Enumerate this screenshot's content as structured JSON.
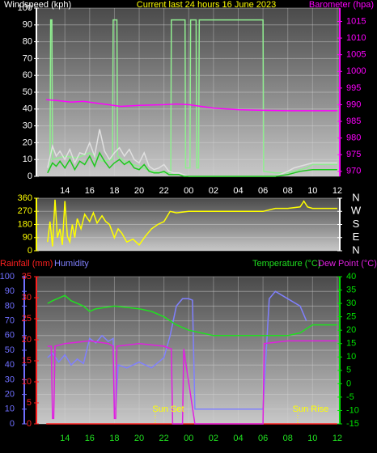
{
  "chart_data": [
    {
      "type": "line",
      "title": "Current last 24 hours 16 June 2023",
      "y_label": "Windspeed (kph)",
      "xlim": [
        11.7,
        36.2
      ],
      "xticks": [
        14,
        16,
        18,
        20,
        22,
        {
          "value": 24,
          "label": "00"
        },
        {
          "value": 26,
          "label": "02"
        },
        {
          "value": 28,
          "label": "04"
        },
        {
          "value": 30,
          "label": "06"
        },
        {
          "value": 32,
          "label": "08"
        },
        {
          "value": 34,
          "label": "10"
        },
        {
          "value": 36,
          "label": "12"
        }
      ],
      "ylim": [
        0,
        100
      ],
      "yticks": [
        0,
        10,
        20,
        30,
        40,
        50,
        60,
        70,
        80,
        90,
        100
      ],
      "y_color": "#ffffff",
      "y2lim": [
        968.5,
        1019
      ],
      "y2ticks": [
        970,
        975,
        980,
        985,
        990,
        995,
        1000,
        1005,
        1010,
        1015
      ],
      "y2_color": "#ff00ff",
      "grid": true,
      "series": [
        {
          "color": "#90ee90",
          "x": [
            12.6,
            12.8,
            12.85,
            12.95,
            13,
            14,
            15,
            16,
            17,
            17.85,
            17.9,
            18.2,
            18.25,
            19,
            20,
            21,
            22,
            22.55,
            22.6,
            23.7,
            23.75,
            24.1,
            24.15,
            24.6,
            24.65,
            24.8,
            24.85,
            30,
            30.05,
            31,
            32,
            33,
            33.5,
            34,
            35,
            36
          ],
          "values": [
            3,
            4,
            93,
            93,
            10,
            12,
            11,
            14,
            9,
            10,
            93,
            93,
            12,
            8,
            6,
            3,
            2,
            2,
            93,
            93,
            5,
            5,
            93,
            93,
            5,
            5,
            93,
            93,
            3,
            2,
            2,
            4,
            5,
            7,
            7,
            7
          ]
        },
        {
          "color": "#e0e0e0",
          "x": [
            12.6,
            13,
            13.3,
            13.6,
            14,
            14.4,
            14.8,
            15.2,
            15.6,
            16,
            16.4,
            16.8,
            17.2,
            17.6,
            18,
            18.4,
            18.8,
            19.2,
            19.6,
            20,
            20.4,
            20.8,
            21.2,
            21.6,
            22,
            22.4,
            22.8,
            23.2,
            23.6,
            24,
            26,
            28,
            30,
            31,
            32,
            32.5,
            33,
            34,
            35,
            36
          ],
          "values": [
            5,
            18,
            12,
            15,
            10,
            16,
            8,
            14,
            13,
            20,
            12,
            28,
            15,
            10,
            14,
            17,
            12,
            16,
            10,
            8,
            14,
            6,
            4,
            5,
            7,
            3,
            2,
            2,
            1,
            0,
            0,
            0,
            0,
            0,
            3,
            5,
            6,
            8,
            8,
            8
          ]
        },
        {
          "color": "#1ec81e",
          "x": [
            12.6,
            13,
            13.3,
            13.6,
            14,
            14.4,
            14.8,
            15.2,
            15.6,
            16,
            16.4,
            16.8,
            17.2,
            17.6,
            18,
            18.4,
            18.8,
            19.2,
            19.6,
            20,
            20.4,
            20.8,
            21.2,
            21.6,
            22,
            22.4,
            22.8,
            23.2,
            23.6,
            24,
            26,
            28,
            30,
            31,
            32,
            32.5,
            33,
            34,
            35,
            36
          ],
          "values": [
            2,
            8,
            6,
            9,
            5,
            10,
            4,
            9,
            7,
            12,
            6,
            14,
            9,
            5,
            8,
            10,
            7,
            9,
            5,
            4,
            7,
            3,
            2,
            2,
            3,
            1,
            1,
            1,
            0,
            0,
            0,
            0,
            0,
            0,
            1,
            2,
            3,
            4,
            4,
            4
          ]
        },
        {
          "name": "Barometer (hpa)",
          "color": "#ff00ff",
          "axis": "y2",
          "x": [
            12.5,
            13.5,
            14.5,
            15.5,
            16.5,
            17.5,
            18.5,
            20,
            22,
            23,
            24,
            25,
            26,
            28,
            30,
            32,
            34,
            36
          ],
          "values": [
            991.5,
            991.2,
            990.8,
            991,
            990.5,
            990,
            989.5,
            989.8,
            990,
            990.2,
            990,
            989.5,
            989,
            988.5,
            988.3,
            988.2,
            988.2,
            988.2
          ]
        }
      ]
    },
    {
      "type": "line",
      "xlim": [
        11.7,
        36.2
      ],
      "ylim": [
        0,
        360
      ],
      "yticks": [
        0,
        90,
        180,
        270,
        360
      ],
      "y_color": "#ffff00",
      "y2lim": [
        0,
        360
      ],
      "y2ticks": [
        {
          "value": 0,
          "label": "N"
        },
        {
          "value": 90,
          "label": "E"
        },
        {
          "value": 180,
          "label": "S"
        },
        {
          "value": 270,
          "label": "W"
        },
        {
          "value": 360,
          "label": "N"
        }
      ],
      "y2_color": "#ffffff",
      "grid": true,
      "series": [
        {
          "color": "#ffff00",
          "x": [
            12.6,
            12.8,
            13,
            13.2,
            13.4,
            13.6,
            13.8,
            14,
            14.2,
            14.4,
            14.6,
            14.8,
            15,
            15.3,
            15.6,
            16,
            16.3,
            16.6,
            17,
            17.3,
            17.6,
            18,
            18.3,
            18.6,
            19,
            19.5,
            20,
            20.5,
            21,
            21.5,
            22,
            22.5,
            23,
            24,
            26,
            28,
            30,
            31,
            32,
            33,
            33.3,
            33.6,
            34,
            36
          ],
          "values": [
            60,
            200,
            30,
            350,
            90,
            150,
            40,
            340,
            100,
            60,
            180,
            90,
            220,
            150,
            250,
            200,
            260,
            190,
            240,
            200,
            180,
            90,
            150,
            120,
            60,
            80,
            40,
            100,
            150,
            180,
            200,
            270,
            260,
            270,
            270,
            270,
            270,
            290,
            290,
            300,
            340,
            300,
            290,
            290
          ]
        }
      ]
    },
    {
      "type": "line",
      "xlim": [
        11.7,
        36.2
      ],
      "xticks": [
        14,
        16,
        18,
        20,
        22,
        {
          "value": 24,
          "label": "00"
        },
        {
          "value": 26,
          "label": "02"
        },
        {
          "value": 28,
          "label": "04"
        },
        {
          "value": 30,
          "label": "06"
        },
        {
          "value": 32,
          "label": "08"
        },
        {
          "value": 34,
          "label": "10"
        },
        {
          "value": 36,
          "label": "12"
        }
      ],
      "ylim": [
        0,
        100
      ],
      "yticks": [
        0,
        10,
        20,
        30,
        40,
        50,
        60,
        70,
        80,
        90,
        100
      ],
      "y_color": "#6f6fff",
      "y2lim": [
        -15,
        40
      ],
      "y2ticks": [
        -15,
        -10,
        -5,
        0,
        5,
        10,
        15,
        20,
        25,
        30,
        35,
        40
      ],
      "y2_color": "#00e000",
      "y3lim": [
        0,
        35
      ],
      "y3ticks": [
        0,
        5,
        10,
        15,
        20,
        25,
        30,
        35
      ],
      "y3_color": "#ff2020",
      "grid": true,
      "series": [
        {
          "name": "Rainfall (mm)",
          "color": "#ff2020",
          "axis": "y3",
          "x": [
            12.5,
            36
          ],
          "values": [
            0,
            0
          ]
        },
        {
          "name": "Humidity",
          "color": "#8080ff",
          "x": [
            12.6,
            13,
            13.5,
            14,
            14.5,
            15,
            15.5,
            16,
            16.5,
            17,
            17.5,
            17.9,
            18,
            18.1,
            18.3,
            19,
            20,
            21,
            22,
            22.5,
            23,
            23.5,
            24,
            24.3,
            24.5,
            26,
            28,
            30,
            30.5,
            31,
            32,
            33,
            33.5
          ],
          "values": [
            45,
            48,
            42,
            47,
            40,
            44,
            41,
            58,
            55,
            60,
            56,
            58,
            10,
            10,
            40,
            38,
            42,
            38,
            45,
            60,
            80,
            85,
            85,
            84,
            10,
            10,
            10,
            10,
            85,
            90,
            85,
            80,
            70
          ]
        },
        {
          "name": "Temperature (°C)",
          "color": "#20e020",
          "axis": "y2",
          "x": [
            12.6,
            13,
            14,
            14.5,
            15,
            15.5,
            16,
            16.5,
            18,
            20,
            21,
            22,
            23,
            24,
            26,
            28,
            30,
            32,
            33,
            34,
            36
          ],
          "values": [
            30,
            31,
            33,
            31,
            30,
            29,
            27,
            28,
            29,
            28,
            27,
            25,
            22,
            20,
            18,
            18,
            18,
            18,
            19,
            22,
            22
          ]
        },
        {
          "name": "Dew Point (°C)",
          "color": "#e020e0",
          "axis": "y2",
          "x": [
            12.6,
            12.9,
            13,
            13.1,
            13.2,
            14,
            16,
            17.5,
            17.9,
            18,
            18.1,
            18.2,
            20,
            22,
            22.6,
            22.7,
            23.5,
            23.6,
            24.5,
            24.6,
            30,
            30.1,
            32,
            36
          ],
          "values": [
            14,
            14,
            -13,
            -13,
            14,
            15,
            16,
            15,
            14,
            -13,
            -13,
            14,
            15,
            14,
            13,
            -15,
            -15,
            13,
            -15,
            -15,
            -15,
            15,
            16,
            16
          ]
        }
      ],
      "annotations": [
        {
          "text": "Sun Set",
          "x": 21.3
        },
        {
          "text": "Sun Rise",
          "x": 32.8
        }
      ]
    }
  ]
}
